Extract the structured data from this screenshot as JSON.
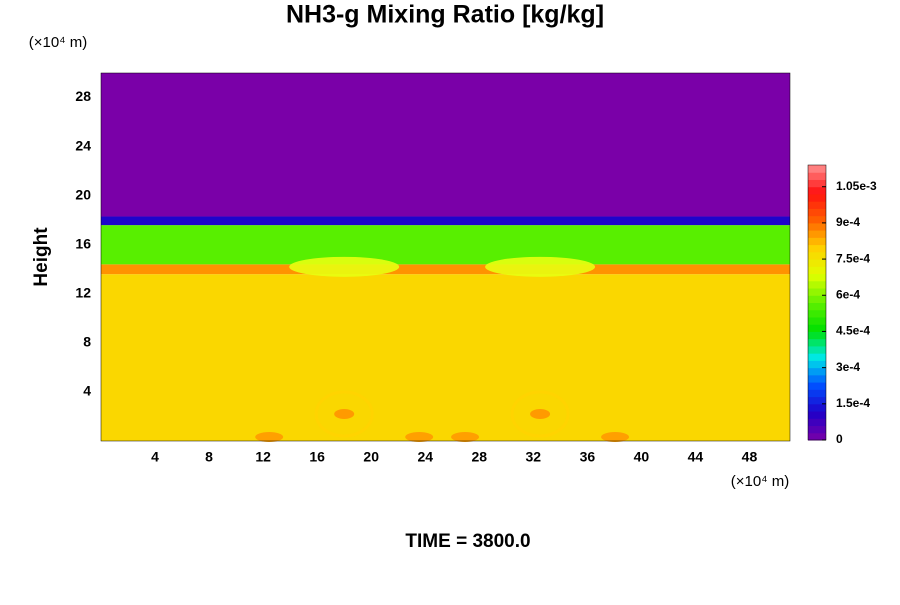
{
  "chart_data": {
    "type": "contour",
    "title": "NH3-g Mixing Ratio [kg/kg]",
    "y_label": "Height",
    "x_unit": "(×10⁴ m)",
    "y_unit": "(×10⁴ m)",
    "footer": "TIME = 3800.0",
    "xlim": [
      0,
      51
    ],
    "ylim": [
      0,
      30
    ],
    "xticks": [
      4,
      8,
      12,
      16,
      20,
      24,
      28,
      32,
      36,
      40,
      44,
      48
    ],
    "yticks": [
      4,
      8,
      12,
      16,
      20,
      24,
      28
    ],
    "clim": [
      0,
      0.00114
    ],
    "cticks": [
      0,
      {
        "value": 0.00015,
        "label": "1.5e-4"
      },
      {
        "value": 0.0003,
        "label": "3e-4"
      },
      {
        "value": 0.00045,
        "label": "4.5e-4"
      },
      {
        "value": 0.0006,
        "label": "6e-4"
      },
      {
        "value": 0.00075,
        "label": "7.5e-4"
      },
      {
        "value": 0.0009,
        "label": "9e-4"
      },
      {
        "value": 0.00105,
        "label": "1.05e-3"
      }
    ],
    "colormap": [
      "#7a00a8",
      "#2000c8",
      "#0050ff",
      "#00e8e8",
      "#00e000",
      "#60f000",
      "#e0ff00",
      "#ffd000",
      "#ff6000",
      "#ff1010",
      "#ff9090"
    ],
    "profile_edges": [
      0,
      13.6,
      14.4,
      17.6,
      18.3,
      30
    ],
    "profile_values": [
      0.00078,
      0.00086,
      0.00056,
      0.00012,
      0
    ]
  }
}
